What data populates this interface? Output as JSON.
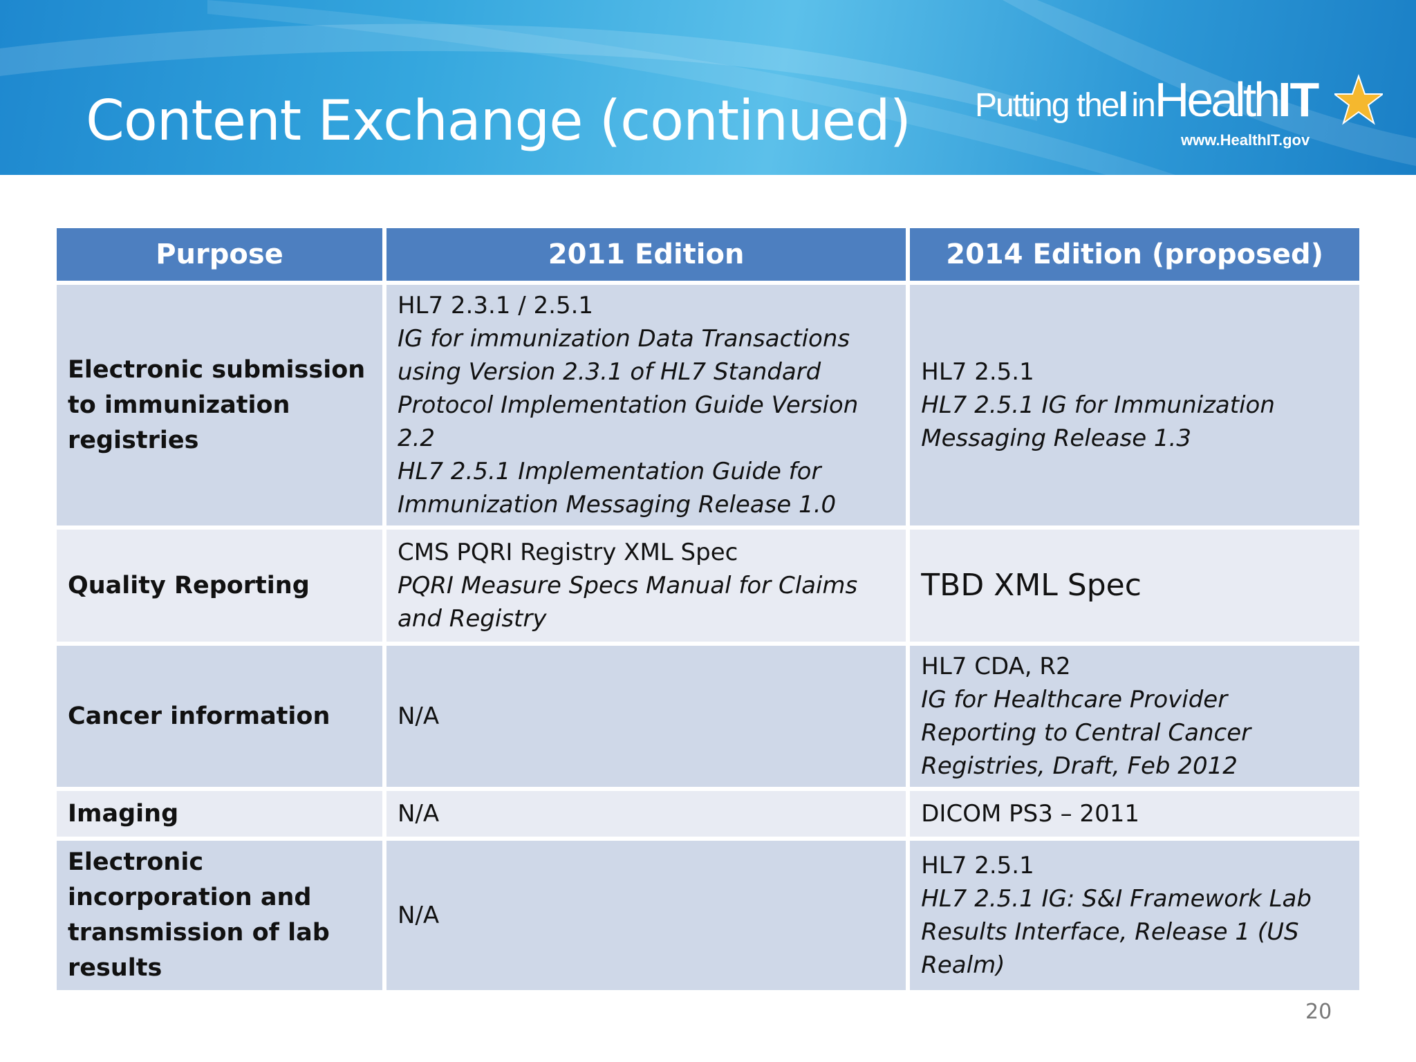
{
  "slide": {
    "title": "Content Exchange  (continued)",
    "page_number": "20"
  },
  "logo": {
    "part_putting": "Putting the",
    "part_i": "I",
    "part_in": "in",
    "part_health": "Health",
    "part_it": "IT",
    "url": "www.HealthIT.gov"
  },
  "table": {
    "headers": [
      "Purpose",
      "2011 Edition",
      "2014 Edition (proposed)"
    ],
    "rows": [
      {
        "purpose": "Electronic submission to immunization registries",
        "e2011": [
          "HL7 2.3.1 / 2.5.1",
          "IG for immunization Data Transactions using Version 2.3.1 of HL7 Standard Protocol Implementation Guide Version 2.2",
          "HL7 2.5.1 Implementation Guide for Immunization Messaging Release 1.0"
        ],
        "e2014": [
          "HL7 2.5.1",
          "HL7 2.5.1 IG for Immunization Messaging Release 1.3"
        ]
      },
      {
        "purpose": "Quality Reporting",
        "e2011": [
          "CMS PQRI Registry XML Spec",
          "PQRI Measure Specs Manual for Claims and Registry"
        ],
        "e2014": [
          "TBD XML Spec"
        ]
      },
      {
        "purpose": "Cancer information",
        "e2011": [
          "N/A"
        ],
        "e2014": [
          "HL7 CDA, R2",
          "IG for Healthcare Provider Reporting to Central Cancer Registries, Draft, Feb 2012"
        ]
      },
      {
        "purpose": "Imaging",
        "e2011": [
          "N/A"
        ],
        "e2014": [
          "DICOM PS3 – 2011"
        ]
      },
      {
        "purpose": "Electronic incorporation and transmission of lab results",
        "e2011": [
          "N/A"
        ],
        "e2014": [
          "HL7 2.5.1",
          "HL7 2.5.1 IG: S&I Framework Lab Results Interface, Release 1 (US Realm)"
        ]
      }
    ]
  }
}
